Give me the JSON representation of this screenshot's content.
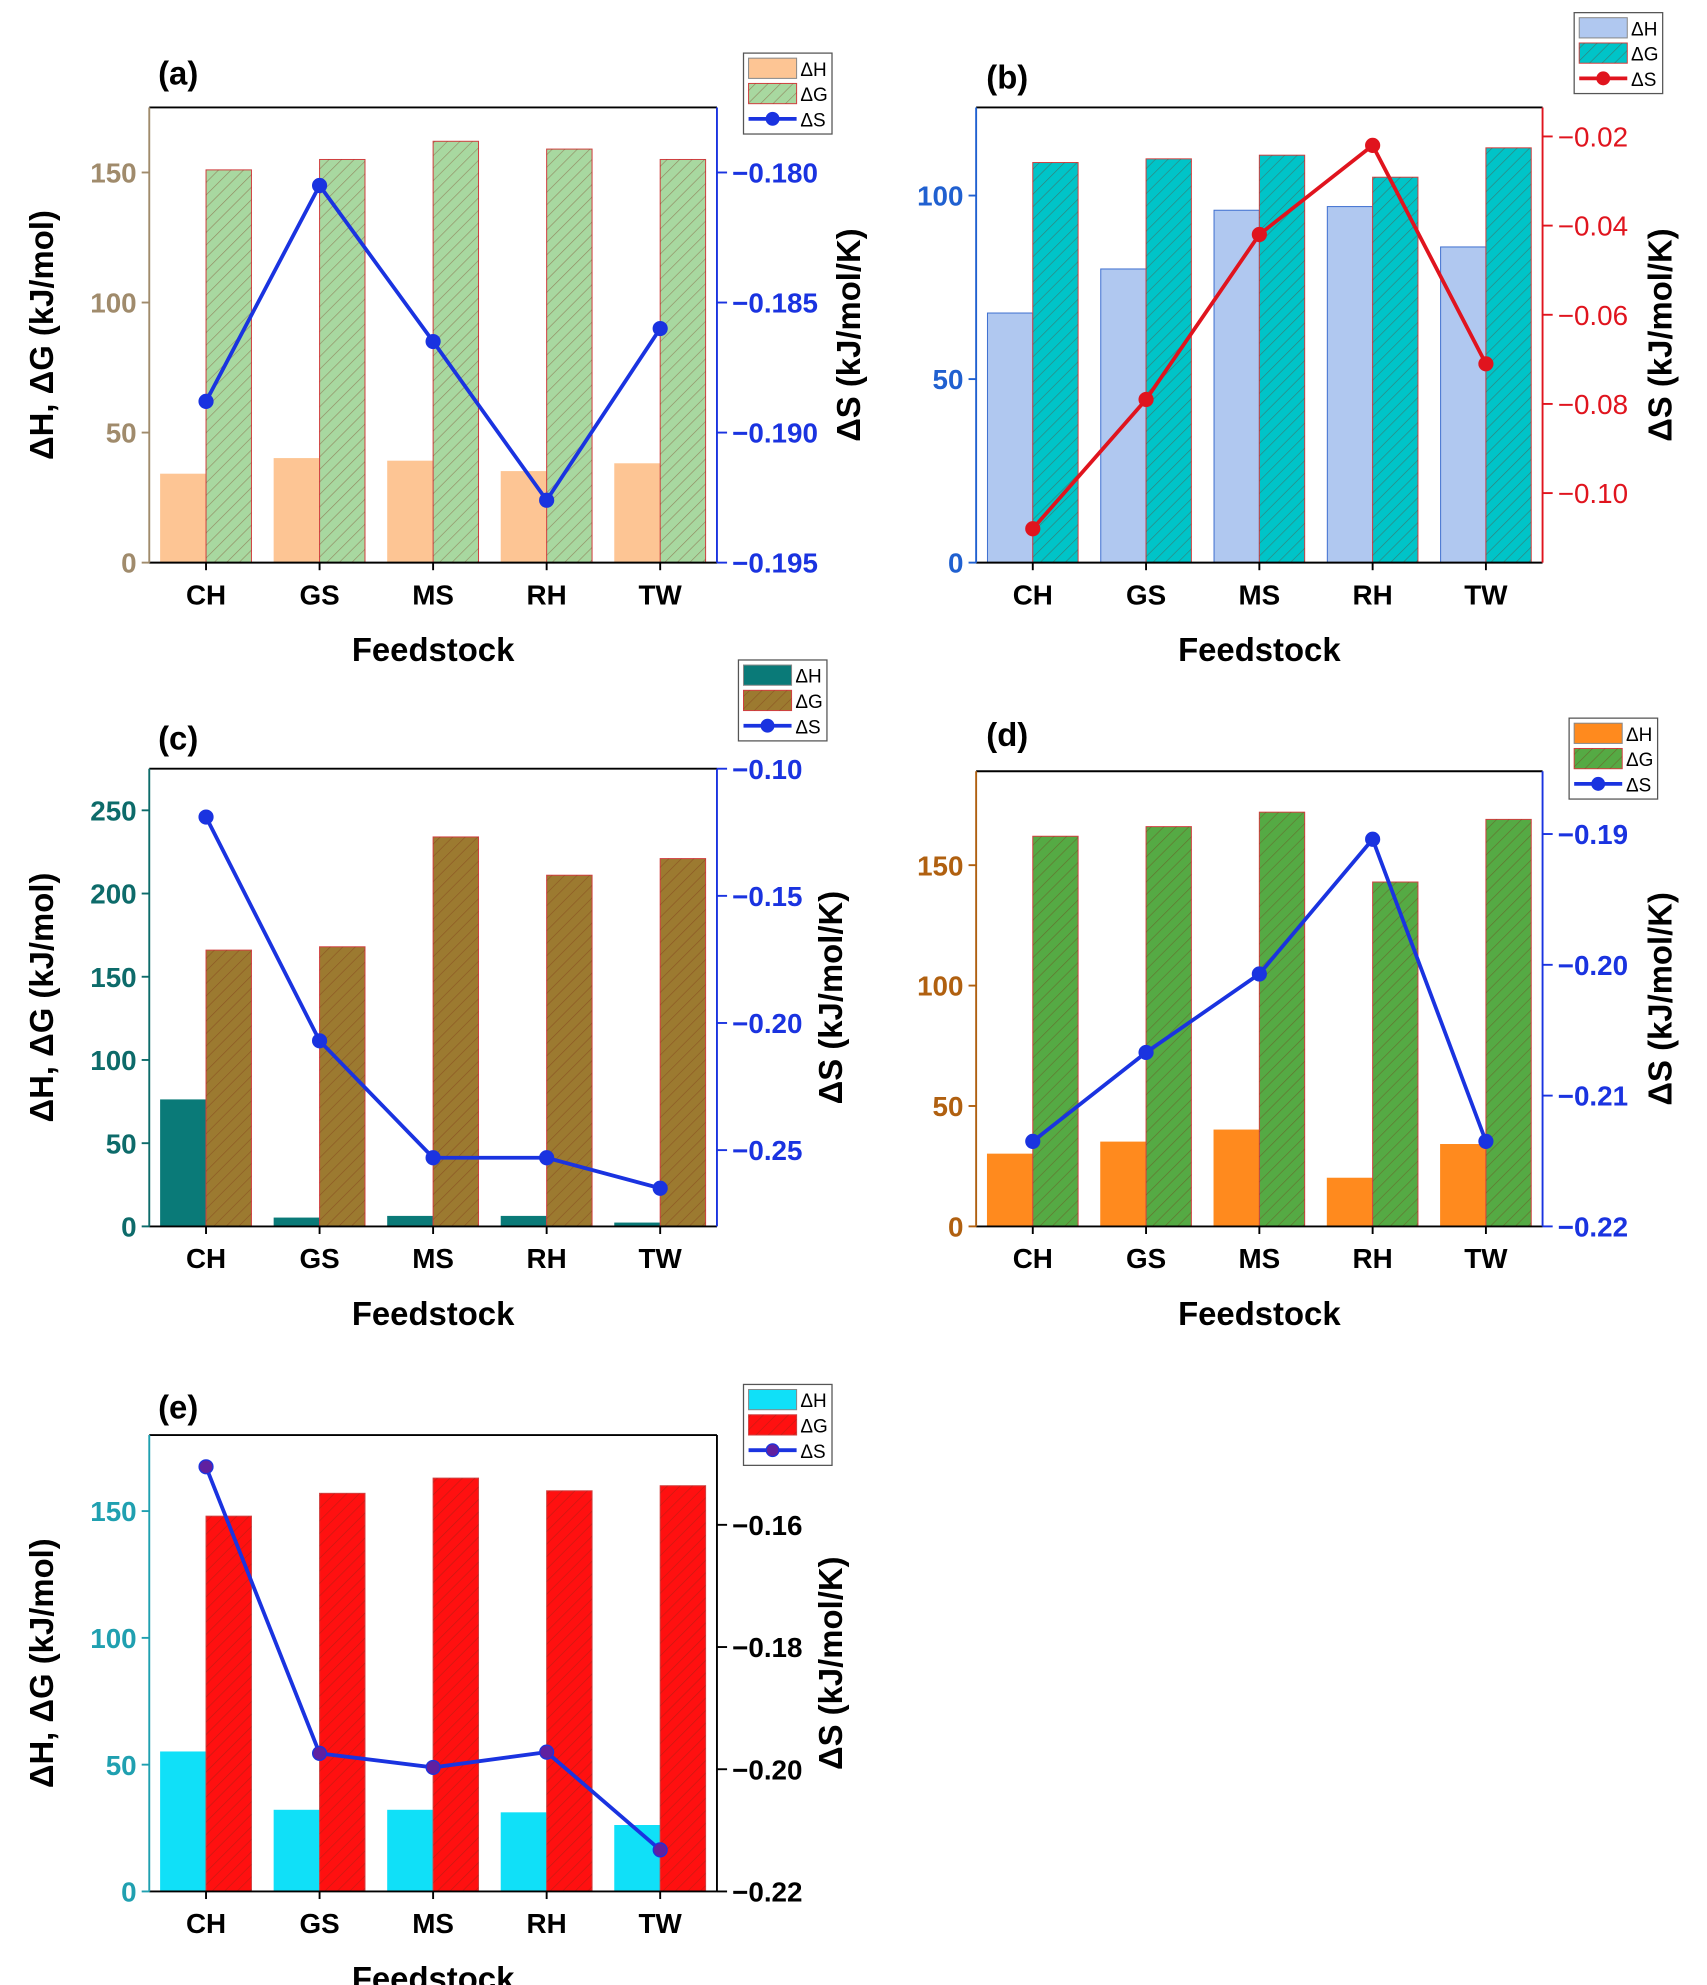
{
  "chart_data": [
    {
      "panel": "(a)",
      "type": "bar+line",
      "categories": [
        "CH",
        "GS",
        "MS",
        "RH",
        "TW"
      ],
      "xlabel": "Feedstock",
      "ylabel": "ΔH, ΔG (kJ/mol)",
      "y2label": "ΔS (kJ/mol/K)",
      "ylim": [
        0,
        175
      ],
      "yticks": [
        0,
        50,
        100,
        150
      ],
      "y2lim": [
        -0.195,
        -0.1775
      ],
      "y2ticks": [
        "-0.195",
        "-0.190",
        "-0.185",
        "-0.180"
      ],
      "series": [
        {
          "name": "ΔH",
          "kind": "bar",
          "values": [
            34,
            40,
            39,
            35,
            38
          ],
          "color": "#fdc594",
          "hatch": false
        },
        {
          "name": "ΔG",
          "kind": "bar",
          "values": [
            151,
            155,
            162,
            159,
            155
          ],
          "color": "#a8d8a0",
          "hatch": true
        },
        {
          "name": "ΔS",
          "kind": "line",
          "axis": "right",
          "values": [
            -0.1888,
            -0.1805,
            -0.1865,
            -0.1926,
            -0.186
          ],
          "color": "#1a33e0",
          "marker": "#1a33e0"
        }
      ],
      "left_axis_color": "#a08b6c",
      "right_axis_color": "#1a33e0",
      "legend": "top-right outside"
    },
    {
      "panel": "(b)",
      "type": "bar+line",
      "categories": [
        "CH",
        "GS",
        "MS",
        "RH",
        "TW"
      ],
      "xlabel": "Feedstock",
      "ylabel": "",
      "y2label": "ΔS (kJ/mol/K)",
      "ylim": [
        0,
        124
      ],
      "yticks": [
        0,
        50,
        100
      ],
      "y2lim": [
        -0.1156,
        -0.0135
      ],
      "y2ticks": [
        "-0.10",
        "-0.08",
        "-0.06",
        "-0.04",
        "-0.02"
      ],
      "series": [
        {
          "name": "ΔH",
          "kind": "bar",
          "values": [
            68,
            80,
            96,
            97,
            86
          ],
          "color": "#b0c8f0",
          "hatch": false
        },
        {
          "name": "ΔG",
          "kind": "bar",
          "values": [
            109,
            110,
            111,
            105,
            113
          ],
          "color": "#00c4c8",
          "hatch": true
        },
        {
          "name": "ΔS",
          "kind": "line",
          "axis": "right",
          "values": [
            -0.108,
            -0.079,
            -0.042,
            -0.022,
            -0.071
          ],
          "color": "#e0141e",
          "marker": "#e0141e"
        }
      ],
      "left_axis_color": "#2060d0",
      "right_axis_color": "#e0141e",
      "legend": "top-right outside"
    },
    {
      "panel": "(c)",
      "type": "bar+line",
      "categories": [
        "CH",
        "GS",
        "MS",
        "RH",
        "TW"
      ],
      "xlabel": "Feedstock",
      "ylabel": "ΔH, ΔG (kJ/mol)",
      "y2label": "ΔS (kJ/mol/K)",
      "ylim": [
        0,
        275
      ],
      "yticks": [
        0,
        50,
        100,
        150,
        200,
        250
      ],
      "y2lim": [
        -0.28,
        -0.1
      ],
      "y2ticks": [
        "-0.25",
        "-0.20",
        "-0.15",
        "-0.10"
      ],
      "series": [
        {
          "name": "ΔH",
          "kind": "bar",
          "values": [
            76,
            5,
            6,
            6,
            2
          ],
          "color": "#0a7a78",
          "hatch": false
        },
        {
          "name": "ΔG",
          "kind": "bar",
          "values": [
            166,
            168,
            234,
            211,
            221
          ],
          "color": "#9c7a30",
          "hatch": true
        },
        {
          "name": "ΔS",
          "kind": "line",
          "axis": "right",
          "values": [
            -0.119,
            -0.207,
            -0.253,
            -0.253,
            -0.265
          ],
          "color": "#1a33e0",
          "marker": "#1a33e0"
        }
      ],
      "left_axis_color": "#0d6b6a",
      "right_axis_color": "#1a33e0",
      "legend": "top-right outside"
    },
    {
      "panel": "(d)",
      "type": "bar+line",
      "categories": [
        "CH",
        "GS",
        "MS",
        "RH",
        "TW"
      ],
      "xlabel": "Feedstock",
      "ylabel": "",
      "y2label": "ΔS (kJ/mol/K)",
      "ylim": [
        0,
        189
      ],
      "yticks": [
        0,
        50,
        100,
        150
      ],
      "y2lim": [
        -0.22,
        -0.1852
      ],
      "y2ticks": [
        "-0.22",
        "-0.21",
        "-0.20",
        "-0.19"
      ],
      "series": [
        {
          "name": "ΔH",
          "kind": "bar",
          "values": [
            30,
            35,
            40,
            20,
            34
          ],
          "color": "#ff8a1e",
          "hatch": false
        },
        {
          "name": "ΔG",
          "kind": "bar",
          "values": [
            162,
            166,
            172,
            143,
            169
          ],
          "color": "#55aa44",
          "hatch": true
        },
        {
          "name": "ΔS",
          "kind": "line",
          "axis": "right",
          "values": [
            -0.2135,
            -0.2067,
            -0.2007,
            -0.1904,
            -0.2135
          ],
          "color": "#1a33e0",
          "marker": "#1a33e0"
        }
      ],
      "left_axis_color": "#b06010",
      "right_axis_color": "#1a33e0",
      "legend": "top-right outside"
    },
    {
      "panel": "(e)",
      "type": "bar+line",
      "categories": [
        "CH",
        "GS",
        "MS",
        "RH",
        "TW"
      ],
      "xlabel": "Feedstock",
      "ylabel": "ΔH, ΔG (kJ/mol)",
      "y2label": "ΔS (kJ/mol/K)",
      "ylim": [
        0,
        180
      ],
      "yticks": [
        0,
        50,
        100,
        150
      ],
      "y2lim": [
        -0.22,
        -0.1453
      ],
      "y2ticks": [
        "-0.22",
        "-0.20",
        "-0.18",
        "-0.16"
      ],
      "series": [
        {
          "name": "ΔH",
          "kind": "bar",
          "values": [
            55,
            32,
            32,
            31,
            26
          ],
          "color": "#10e0f8",
          "hatch": false
        },
        {
          "name": "ΔG",
          "kind": "bar",
          "values": [
            148,
            157,
            163,
            158,
            160
          ],
          "color": "#ff1010",
          "hatch": true
        },
        {
          "name": "ΔS",
          "kind": "line",
          "axis": "right",
          "values": [
            -0.1505,
            -0.1974,
            -0.1997,
            -0.1972,
            -0.2132
          ],
          "color": "#1a33e0",
          "marker": "#6020a0"
        }
      ],
      "left_axis_color": "#20a0b0",
      "right_axis_color": "#000000",
      "legend": "top-right outside"
    }
  ]
}
